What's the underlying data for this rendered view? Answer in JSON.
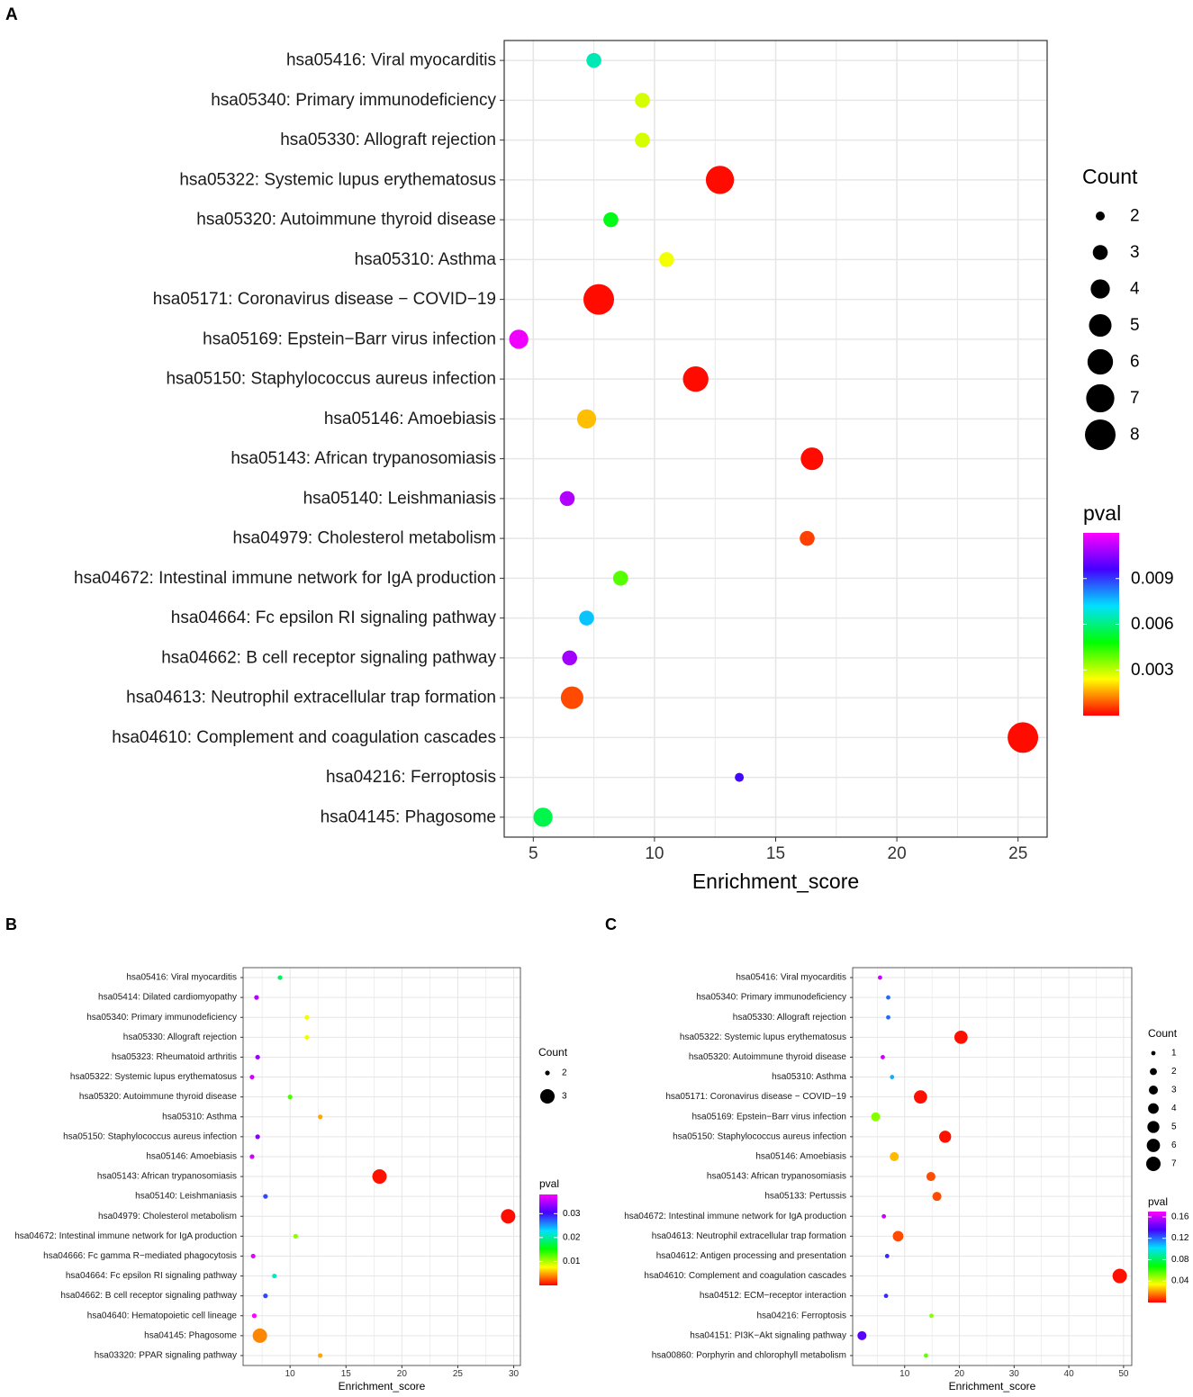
{
  "colors": {
    "panel_border": "#333333",
    "grid": "#e6e6e6",
    "text": "#1a1a1a"
  },
  "panel_labels": {
    "a": "A",
    "b": "B",
    "c": "C"
  },
  "chart_data": [
    {
      "panel": "A",
      "type": "scatter",
      "xlabel": "Enrichment_score",
      "xlim": [
        3.8,
        26.2
      ],
      "xticks": [
        5,
        10,
        15,
        20,
        25
      ],
      "xtick_labels": [
        "5",
        "10",
        "15",
        "20",
        "25"
      ],
      "categories": [
        "hsa05416: Viral myocarditis",
        "hsa05340: Primary immunodeficiency",
        "hsa05330: Allograft rejection",
        "hsa05322: Systemic lupus erythematosus",
        "hsa05320: Autoimmune thyroid disease",
        "hsa05310: Asthma",
        "hsa05171: Coronavirus disease − COVID−19",
        "hsa05169: Epstein−Barr virus infection",
        "hsa05150: Staphylococcus aureus infection",
        "hsa05146: Amoebiasis",
        "hsa05143: African trypanosomiasis",
        "hsa05140: Leishmaniasis",
        "hsa04979: Cholesterol metabolism",
        "hsa04672: Intestinal immune network for IgA production",
        "hsa04664: Fc epsilon RI signaling pathway",
        "hsa04662: B cell receptor signaling pathway",
        "hsa04613: Neutrophil extracellular trap formation",
        "hsa04610: Complement and coagulation cascades",
        "hsa04216: Ferroptosis",
        "hsa04145: Phagosome"
      ],
      "x": [
        7.5,
        9.5,
        9.5,
        12.7,
        8.2,
        10.5,
        7.7,
        4.4,
        11.7,
        7.2,
        16.5,
        6.4,
        16.3,
        8.6,
        7.2,
        6.5,
        6.6,
        25.2,
        13.5,
        5.4
      ],
      "count": [
        3,
        3,
        3,
        7,
        3,
        3,
        8,
        4,
        6,
        4,
        5,
        3,
        3,
        3,
        3,
        3,
        5,
        8,
        2,
        4
      ],
      "pval": [
        0.0065,
        0.0028,
        0.0028,
        0.0001,
        0.005,
        0.0025,
        0.0001,
        0.0118,
        0.0001,
        0.0018,
        0.0001,
        0.011,
        0.0006,
        0.004,
        0.0075,
        0.0108,
        0.0007,
        0.0001,
        0.0095,
        0.0055
      ],
      "size_legend": {
        "title": "Count",
        "values": [
          2,
          3,
          4,
          5,
          6,
          7,
          8
        ],
        "labels": [
          "2",
          "3",
          "4",
          "5",
          "6",
          "7",
          "8"
        ]
      },
      "color_legend": {
        "title": "pval",
        "min": 0,
        "max": 0.012,
        "ticks": [
          0.009,
          0.006,
          0.003
        ],
        "labels": [
          "0.009",
          "0.006",
          "0.003"
        ]
      }
    },
    {
      "panel": "B",
      "type": "scatter",
      "xlabel": "Enrichment_score",
      "xlim": [
        5.8,
        30.6
      ],
      "xticks": [
        10,
        15,
        20,
        25,
        30
      ],
      "xtick_labels": [
        "10",
        "15",
        "20",
        "25",
        "30"
      ],
      "categories": [
        "hsa05416: Viral myocarditis",
        "hsa05414: Dilated cardiomyopathy",
        "hsa05340: Primary immunodeficiency",
        "hsa05330: Allograft rejection",
        "hsa05323: Rheumatoid arthritis",
        "hsa05322: Systemic lupus erythematosus",
        "hsa05320: Autoimmune thyroid disease",
        "hsa05310: Asthma",
        "hsa05150: Staphylococcus aureus infection",
        "hsa05146: Amoebiasis",
        "hsa05143: African trypanosomiasis",
        "hsa05140: Leishmaniasis",
        "hsa04979: Cholesterol metabolism",
        "hsa04672: Intestinal immune network for IgA production",
        "hsa04666: Fc gamma R−mediated phagocytosis",
        "hsa04664: Fc epsilon RI signaling pathway",
        "hsa04662: B cell receptor signaling pathway",
        "hsa04640: Hematopoietic cell lineage",
        "hsa04145: Phagosome",
        "hsa03320: PPAR signaling pathway"
      ],
      "x": [
        9.1,
        7.0,
        11.5,
        11.5,
        7.1,
        6.6,
        10.0,
        12.7,
        7.1,
        6.6,
        18.0,
        7.8,
        29.5,
        10.5,
        6.7,
        8.6,
        7.8,
        6.8,
        7.3,
        12.7
      ],
      "count": [
        2,
        2,
        2,
        2,
        2,
        2,
        2,
        2,
        2,
        2,
        3,
        2,
        3,
        2,
        2,
        2,
        2,
        2,
        3,
        2
      ],
      "pval": [
        0.018,
        0.035,
        0.008,
        0.008,
        0.034,
        0.036,
        0.013,
        0.005,
        0.033,
        0.036,
        0.0005,
        0.028,
        0.0004,
        0.011,
        0.037,
        0.021,
        0.028,
        0.038,
        0.004,
        0.005
      ],
      "size_legend": {
        "title": "Count",
        "values": [
          2,
          3
        ],
        "labels": [
          "2",
          "3"
        ]
      },
      "color_legend": {
        "title": "pval",
        "min": 0,
        "max": 0.038,
        "ticks": [
          0.03,
          0.02,
          0.01
        ],
        "labels": [
          "0.03",
          "0.02",
          "0.01"
        ]
      }
    },
    {
      "panel": "C",
      "type": "scatter",
      "xlabel": "Enrichment_score",
      "xlim": [
        0.5,
        51.5
      ],
      "xticks": [
        10,
        20,
        30,
        40,
        50
      ],
      "xtick_labels": [
        "10",
        "20",
        "30",
        "40",
        "50"
      ],
      "categories": [
        "hsa05416: Viral myocarditis",
        "hsa05340: Primary immunodeficiency",
        "hsa05330: Allograft rejection",
        "hsa05322: Systemic lupus erythematosus",
        "hsa05320: Autoimmune thyroid disease",
        "hsa05310: Asthma",
        "hsa05171: Coronavirus disease − COVID−19",
        "hsa05169: Epstein−Barr virus infection",
        "hsa05150: Staphylococcus aureus infection",
        "hsa05146: Amoebiasis",
        "hsa05143: African trypanosomiasis",
        "hsa05133: Pertussis",
        "hsa04672: Intestinal immune network for IgA production",
        "hsa04613: Neutrophil extracellular trap formation",
        "hsa04612: Antigen processing and presentation",
        "hsa04610: Complement and coagulation cascades",
        "hsa04512: ECM−receptor interaction",
        "hsa04216: Ferroptosis",
        "hsa04151: PI3K−Akt signaling pathway",
        "hsa00860: Porphyrin and chlorophyll metabolism"
      ],
      "x": [
        5.5,
        7.0,
        7.0,
        20.3,
        6.0,
        7.7,
        12.9,
        4.7,
        17.4,
        8.1,
        14.8,
        15.9,
        6.2,
        8.8,
        6.8,
        49.3,
        6.6,
        14.9,
        2.2,
        13.9
      ],
      "count": [
        1,
        1,
        1,
        6,
        1,
        1,
        6,
        3,
        5,
        3,
        3,
        3,
        1,
        4,
        1,
        7,
        1,
        1,
        3,
        1
      ],
      "pval": [
        0.16,
        0.12,
        0.12,
        0.002,
        0.16,
        0.11,
        0.002,
        0.05,
        0.002,
        0.025,
        0.01,
        0.01,
        0.16,
        0.01,
        0.13,
        0.002,
        0.13,
        0.05,
        0.14,
        0.055
      ],
      "size_legend": {
        "title": "Count",
        "values": [
          1,
          2,
          3,
          4,
          5,
          6,
          7
        ],
        "labels": [
          "1",
          "2",
          "3",
          "4",
          "5",
          "6",
          "7"
        ]
      },
      "color_legend": {
        "title": "pval",
        "min": 0,
        "max": 0.17,
        "ticks": [
          0.16,
          0.12,
          0.08,
          0.04
        ],
        "labels": [
          "0.16",
          "0.12",
          "0.08",
          "0.04"
        ]
      }
    }
  ]
}
